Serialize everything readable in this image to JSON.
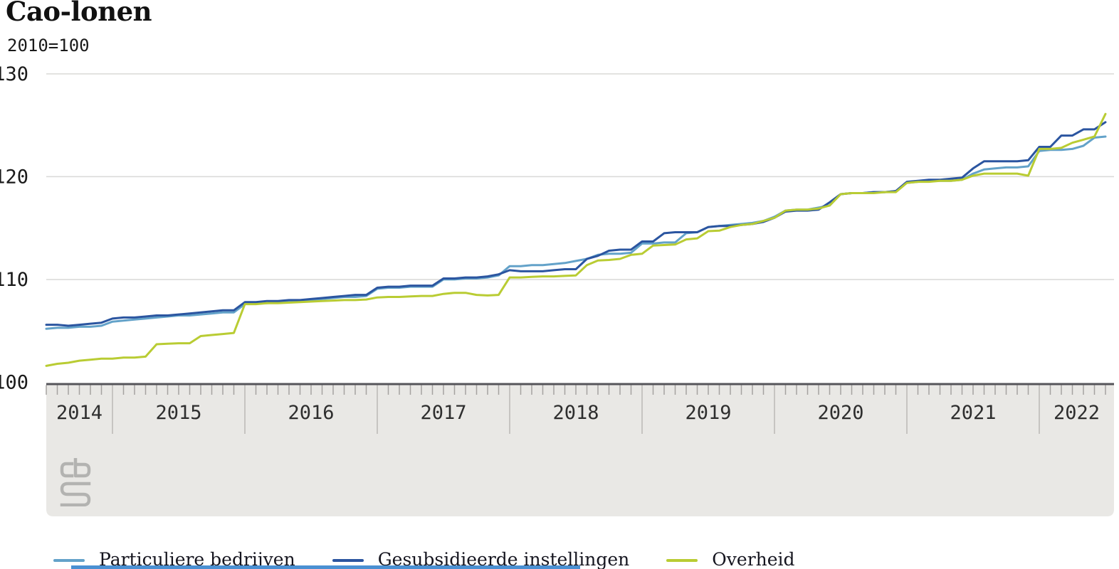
{
  "title": "Cao-lonen",
  "subtitle": "2010=100",
  "logo": "cbs-logo",
  "chart_data": {
    "type": "line",
    "title": "Cao-lonen",
    "unit_note": "2010=100",
    "frequency": "monthly",
    "x_start": "2014-07",
    "x_end": "2022-07",
    "x_year_labels": [
      "2014",
      "2015",
      "2016",
      "2017",
      "2018",
      "2019",
      "2020",
      "2021",
      "2022"
    ],
    "ylim": [
      100,
      130
    ],
    "yticks": [
      100,
      110,
      120,
      130
    ],
    "grid": "horizontal",
    "legend_position": "bottom",
    "series": [
      {
        "name": "Particuliere bedrijven",
        "color": "#63a2c9",
        "values": [
          105.2,
          105.3,
          105.3,
          105.4,
          105.4,
          105.5,
          105.9,
          106.0,
          106.1,
          106.2,
          106.3,
          106.4,
          106.5,
          106.5,
          106.6,
          106.7,
          106.8,
          106.8,
          107.6,
          107.7,
          107.7,
          107.8,
          107.8,
          107.9,
          108.0,
          108.1,
          108.2,
          108.3,
          108.3,
          108.4,
          109.1,
          109.2,
          109.2,
          109.3,
          109.3,
          109.3,
          110.0,
          110.0,
          110.1,
          110.1,
          110.2,
          110.4,
          111.3,
          111.3,
          111.4,
          111.4,
          111.5,
          111.6,
          111.8,
          112.0,
          112.4,
          112.5,
          112.5,
          112.6,
          113.5,
          113.5,
          113.6,
          113.6,
          114.5,
          114.6,
          115.1,
          115.2,
          115.3,
          115.4,
          115.5,
          115.7,
          116.1,
          116.7,
          116.8,
          116.8,
          117.0,
          117.2,
          118.3,
          118.4,
          118.4,
          118.5,
          118.5,
          118.6,
          119.4,
          119.5,
          119.6,
          119.6,
          119.6,
          119.7,
          120.3,
          120.7,
          120.8,
          120.9,
          120.9,
          121.0,
          122.5,
          122.6,
          122.6,
          122.7,
          123.0,
          123.8,
          123.9
        ]
      },
      {
        "name": "Gesubsidieerde instellingen",
        "color": "#2b55a0",
        "values": [
          105.6,
          105.6,
          105.5,
          105.6,
          105.7,
          105.8,
          106.2,
          106.3,
          106.3,
          106.4,
          106.5,
          106.5,
          106.6,
          106.7,
          106.8,
          106.9,
          107.0,
          107.0,
          107.8,
          107.8,
          107.9,
          107.9,
          108.0,
          108.0,
          108.1,
          108.2,
          108.3,
          108.4,
          108.5,
          108.5,
          109.2,
          109.3,
          109.3,
          109.4,
          109.4,
          109.4,
          110.1,
          110.1,
          110.2,
          110.2,
          110.3,
          110.5,
          110.9,
          110.8,
          110.8,
          110.8,
          110.9,
          111.0,
          111.0,
          112.0,
          112.3,
          112.8,
          112.9,
          112.9,
          113.7,
          113.7,
          114.5,
          114.6,
          114.6,
          114.6,
          115.1,
          115.2,
          115.2,
          115.3,
          115.4,
          115.6,
          116.0,
          116.6,
          116.7,
          116.7,
          116.8,
          117.5,
          118.3,
          118.4,
          118.4,
          118.5,
          118.5,
          118.6,
          119.5,
          119.6,
          119.7,
          119.7,
          119.8,
          119.9,
          120.8,
          121.5,
          121.5,
          121.5,
          121.5,
          121.6,
          122.9,
          122.9,
          124.0,
          124.0,
          124.6,
          124.6,
          125.3
        ]
      },
      {
        "name": "Overheid",
        "color": "#b9cc33",
        "values": [
          101.6,
          101.8,
          101.9,
          102.1,
          102.2,
          102.3,
          102.3,
          102.4,
          102.4,
          102.5,
          103.7,
          103.75,
          103.8,
          103.8,
          104.5,
          104.6,
          104.7,
          104.8,
          107.6,
          107.6,
          107.7,
          107.7,
          107.75,
          107.8,
          107.85,
          107.9,
          107.95,
          108.0,
          108.0,
          108.05,
          108.25,
          108.3,
          108.3,
          108.35,
          108.4,
          108.4,
          108.6,
          108.7,
          108.7,
          108.5,
          108.45,
          108.5,
          110.2,
          110.2,
          110.25,
          110.3,
          110.3,
          110.35,
          110.4,
          111.4,
          111.85,
          111.9,
          112.0,
          112.4,
          112.5,
          113.3,
          113.35,
          113.4,
          113.9,
          114.0,
          114.7,
          114.75,
          115.1,
          115.3,
          115.4,
          115.7,
          116.0,
          116.7,
          116.8,
          116.8,
          116.9,
          117.2,
          118.3,
          118.4,
          118.4,
          118.4,
          118.5,
          118.5,
          119.4,
          119.5,
          119.5,
          119.6,
          119.6,
          119.7,
          120.1,
          120.3,
          120.3,
          120.3,
          120.3,
          120.1,
          122.7,
          122.7,
          122.8,
          123.3,
          123.6,
          123.9,
          126.1
        ]
      }
    ],
    "colors": {
      "grid": "#d9d9d7",
      "axis_line": "#55555a",
      "band_fill": "#e9e8e5",
      "month_tick": "#a5a3a0",
      "year_tick": "#c6c4c1"
    }
  }
}
